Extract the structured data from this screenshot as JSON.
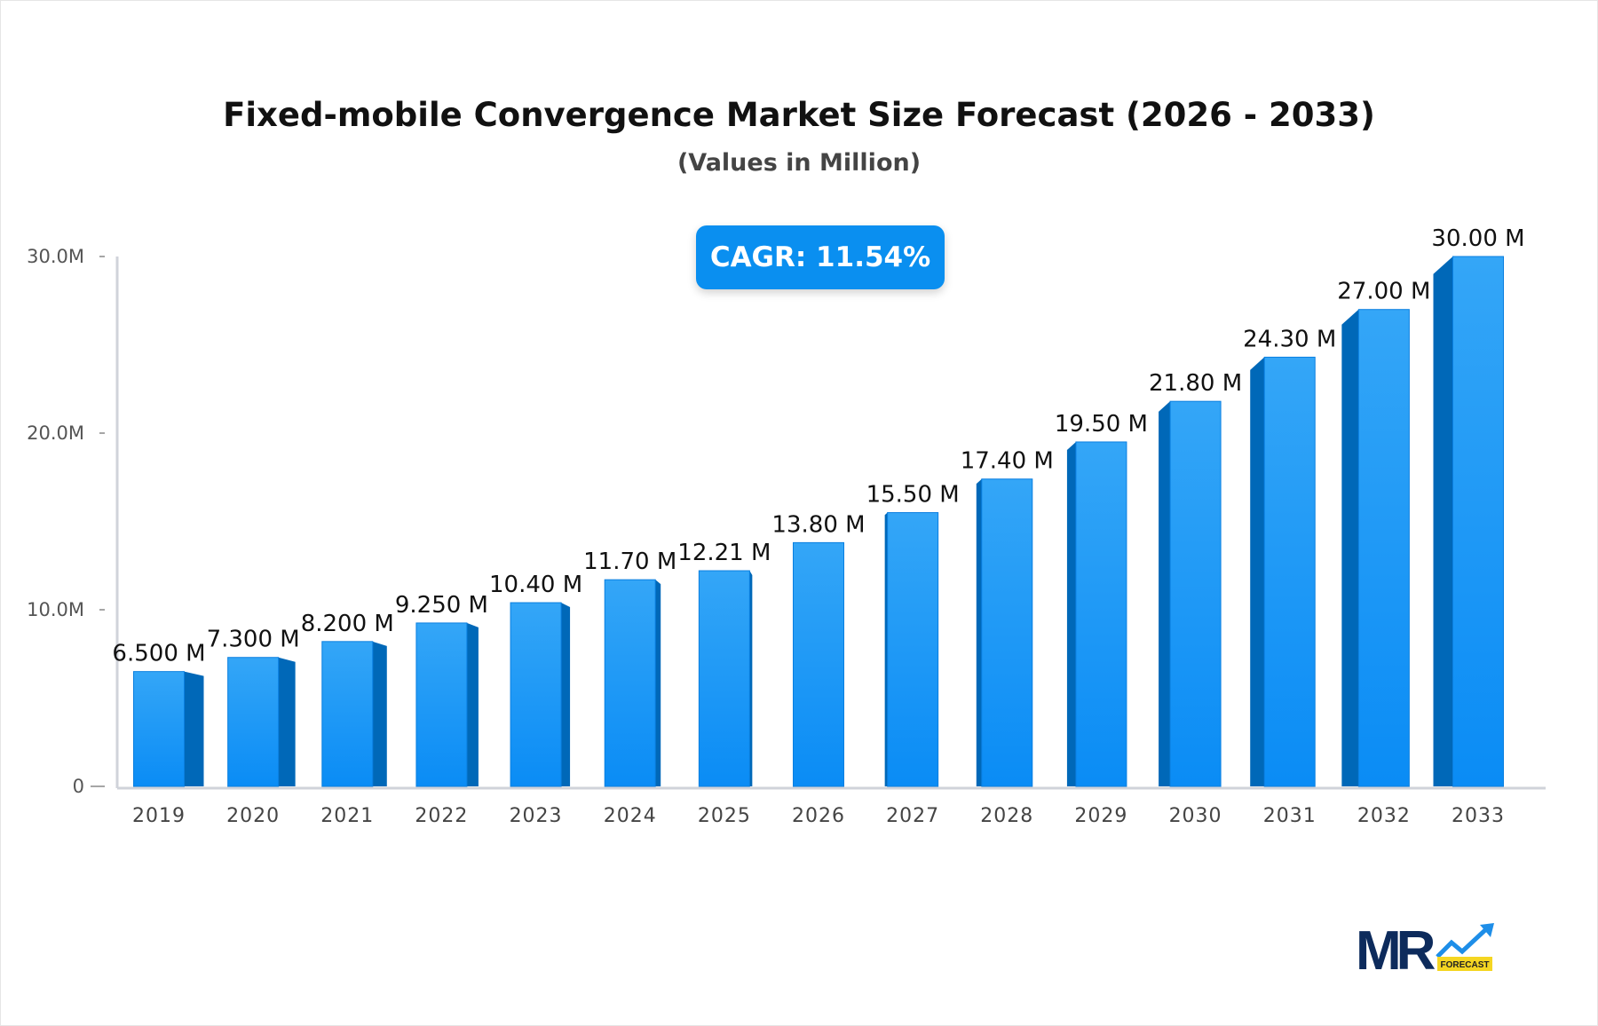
{
  "chart_data": {
    "type": "bar",
    "title": "Fixed-mobile Convergence Market Size Forecast (2026 - 2033)",
    "subtitle": "(Values in Million)",
    "categories": [
      "2019",
      "2020",
      "2021",
      "2022",
      "2023",
      "2024",
      "2025",
      "2026",
      "2027",
      "2028",
      "2029",
      "2030",
      "2031",
      "2032",
      "2033"
    ],
    "values": [
      6.5,
      7.3,
      8.2,
      9.25,
      10.4,
      11.7,
      12.21,
      13.8,
      15.5,
      17.4,
      19.5,
      21.8,
      24.3,
      27.0,
      30.0
    ],
    "data_labels": [
      "6.500 M",
      "7.300 M",
      "8.200 M",
      "9.250 M",
      "10.40 M",
      "11.70 M",
      "12.21 M",
      "13.80 M",
      "15.50 M",
      "17.40 M",
      "19.50 M",
      "21.80 M",
      "24.30 M",
      "27.00 M",
      "30.00 M"
    ],
    "ylim": [
      0,
      30
    ],
    "yticks": [
      0,
      10,
      20,
      30
    ],
    "ytick_labels": [
      "0",
      "10.0M",
      "20.0M",
      "30.0M"
    ],
    "xlabel": "",
    "ylabel": "",
    "grid": false,
    "colors": {
      "bar": "#1e9bf5",
      "bar_side": "#0068b8",
      "axis": "#d0d3da"
    }
  },
  "cagr_label": "CAGR: 11.54%",
  "logo": {
    "text": "MR",
    "badge": "FORECAST",
    "colors": {
      "mr": "#0d2b5c",
      "arrow": "#1e8ee8",
      "badge": "#f5d622"
    }
  }
}
